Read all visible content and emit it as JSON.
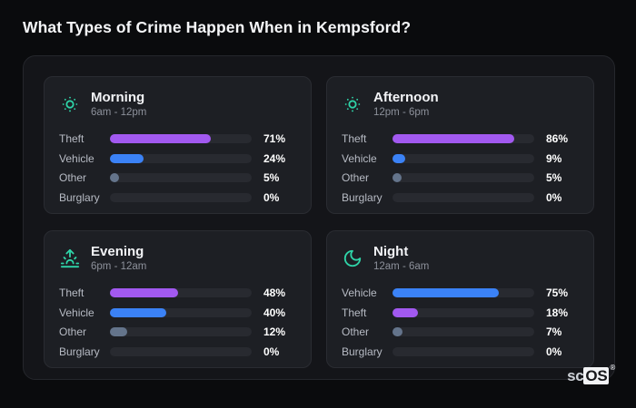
{
  "title": "What Types of Crime Happen When in Kempsford?",
  "colors": {
    "purple": "#a259f0",
    "blue": "#3b82f6",
    "gray": "#64748b",
    "teal": "#2fd4a8",
    "track": "#282a30"
  },
  "watermark": {
    "prefix": "sc",
    "boxed": "OS",
    "reg": "®"
  },
  "panels": [
    {
      "id": "morning",
      "icon": "sun-dim-icon",
      "title": "Morning",
      "range": "6am - 12pm",
      "rows": [
        {
          "label": "Theft",
          "value": 71,
          "display": "71%",
          "color": "purple"
        },
        {
          "label": "Vehicle",
          "value": 24,
          "display": "24%",
          "color": "blue"
        },
        {
          "label": "Other",
          "value": 5,
          "display": "5%",
          "color": "gray"
        },
        {
          "label": "Burglary",
          "value": 0,
          "display": "0%",
          "color": "gray"
        }
      ]
    },
    {
      "id": "afternoon",
      "icon": "sun-dim-icon",
      "title": "Afternoon",
      "range": "12pm - 6pm",
      "rows": [
        {
          "label": "Theft",
          "value": 86,
          "display": "86%",
          "color": "purple"
        },
        {
          "label": "Vehicle",
          "value": 9,
          "display": "9%",
          "color": "blue"
        },
        {
          "label": "Other",
          "value": 5,
          "display": "5%",
          "color": "gray"
        },
        {
          "label": "Burglary",
          "value": 0,
          "display": "0%",
          "color": "gray"
        }
      ]
    },
    {
      "id": "evening",
      "icon": "sunrise-icon",
      "title": "Evening",
      "range": "6pm - 12am",
      "rows": [
        {
          "label": "Theft",
          "value": 48,
          "display": "48%",
          "color": "purple"
        },
        {
          "label": "Vehicle",
          "value": 40,
          "display": "40%",
          "color": "blue"
        },
        {
          "label": "Other",
          "value": 12,
          "display": "12%",
          "color": "gray"
        },
        {
          "label": "Burglary",
          "value": 0,
          "display": "0%",
          "color": "gray"
        }
      ]
    },
    {
      "id": "night",
      "icon": "moon-icon",
      "title": "Night",
      "range": "12am - 6am",
      "rows": [
        {
          "label": "Vehicle",
          "value": 75,
          "display": "75%",
          "color": "blue"
        },
        {
          "label": "Theft",
          "value": 18,
          "display": "18%",
          "color": "purple"
        },
        {
          "label": "Other",
          "value": 7,
          "display": "7%",
          "color": "gray"
        },
        {
          "label": "Burglary",
          "value": 0,
          "display": "0%",
          "color": "gray"
        }
      ]
    }
  ],
  "chart_data": [
    {
      "type": "bar",
      "orientation": "horizontal",
      "title": "Morning",
      "subtitle": "6am - 12pm",
      "categories": [
        "Theft",
        "Vehicle",
        "Other",
        "Burglary"
      ],
      "values": [
        71,
        24,
        5,
        0
      ],
      "unit": "%",
      "xlim": [
        0,
        100
      ],
      "grid": false
    },
    {
      "type": "bar",
      "orientation": "horizontal",
      "title": "Afternoon",
      "subtitle": "12pm - 6pm",
      "categories": [
        "Theft",
        "Vehicle",
        "Other",
        "Burglary"
      ],
      "values": [
        86,
        9,
        5,
        0
      ],
      "unit": "%",
      "xlim": [
        0,
        100
      ],
      "grid": false
    },
    {
      "type": "bar",
      "orientation": "horizontal",
      "title": "Evening",
      "subtitle": "6pm - 12am",
      "categories": [
        "Theft",
        "Vehicle",
        "Other",
        "Burglary"
      ],
      "values": [
        48,
        40,
        12,
        0
      ],
      "unit": "%",
      "xlim": [
        0,
        100
      ],
      "grid": false
    },
    {
      "type": "bar",
      "orientation": "horizontal",
      "title": "Night",
      "subtitle": "12am - 6am",
      "categories": [
        "Vehicle",
        "Theft",
        "Other",
        "Burglary"
      ],
      "values": [
        75,
        18,
        7,
        0
      ],
      "unit": "%",
      "xlim": [
        0,
        100
      ],
      "grid": false
    }
  ]
}
